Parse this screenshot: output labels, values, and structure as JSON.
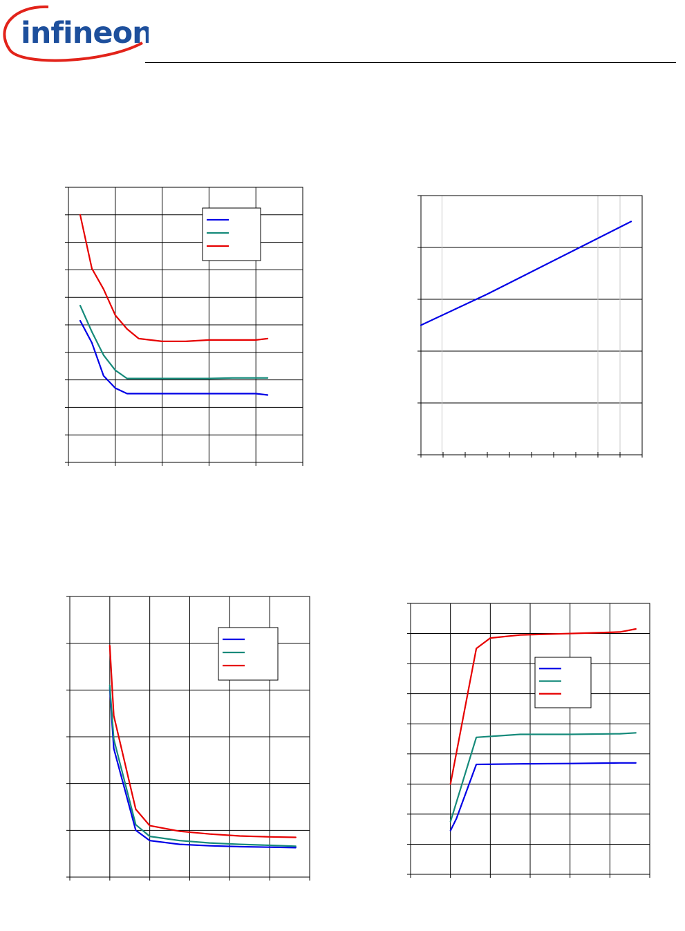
{
  "header": {
    "logo_text": "infineon",
    "colors": {
      "logo_text": "#1d4f9c",
      "logo_swoosh": "#e2231a"
    }
  },
  "chart_data": [
    {
      "type": "line",
      "position": "top-left",
      "xlim": [
        0,
        10
      ],
      "ylim": [
        0,
        10
      ],
      "x_gridlines": 5,
      "y_gridlines": 10,
      "grid": true,
      "legend": "top-right",
      "series": [
        {
          "color": "#0000e6",
          "x": [
            0.5,
            1.0,
            1.5,
            2.0,
            2.5,
            3.0,
            4.0,
            5.0,
            6.0,
            7.0,
            8.0,
            8.5
          ],
          "values": [
            5.15,
            4.35,
            3.15,
            2.7,
            2.5,
            2.5,
            2.5,
            2.5,
            2.5,
            2.5,
            2.5,
            2.45
          ]
        },
        {
          "color": "#158a7a",
          "x": [
            0.5,
            1.0,
            1.5,
            2.0,
            2.5,
            3.0,
            4.0,
            5.0,
            6.0,
            7.0,
            8.0,
            8.5
          ],
          "values": [
            5.7,
            4.75,
            3.9,
            3.35,
            3.05,
            3.05,
            3.05,
            3.05,
            3.05,
            3.07,
            3.07,
            3.07
          ]
        },
        {
          "color": "#e60000",
          "x": [
            0.5,
            1.0,
            1.5,
            2.0,
            2.5,
            3.0,
            4.0,
            5.0,
            6.0,
            7.0,
            8.0,
            8.5
          ],
          "values": [
            9.0,
            7.05,
            6.3,
            5.35,
            4.85,
            4.5,
            4.4,
            4.4,
            4.45,
            4.45,
            4.45,
            4.5
          ]
        }
      ]
    },
    {
      "type": "line",
      "position": "top-right",
      "xlim": [
        0,
        10
      ],
      "ylim": [
        0,
        5
      ],
      "y_gridlines": 5,
      "minor_x_ticks": 10,
      "grid": true,
      "series": [
        {
          "color": "#0000e6",
          "x": [
            0,
            3,
            9.5
          ],
          "values": [
            2.5,
            3.1,
            4.5
          ]
        }
      ]
    },
    {
      "type": "line",
      "position": "bottom-left",
      "xlim": [
        0,
        6
      ],
      "ylim": [
        0,
        6
      ],
      "x_gridlines": 6,
      "y_gridlines": 6,
      "grid": true,
      "legend": "top-right",
      "series": [
        {
          "color": "#0000e6",
          "x": [
            1.0,
            1.1,
            1.65,
            2.0,
            2.75,
            3.5,
            4.25,
            5.0,
            5.65
          ],
          "values": [
            4.05,
            2.75,
            1.0,
            0.78,
            0.7,
            0.67,
            0.65,
            0.64,
            0.63
          ]
        },
        {
          "color": "#158a7a",
          "x": [
            1.0,
            1.1,
            1.65,
            2.0,
            2.75,
            3.5,
            4.25,
            5.0,
            5.65
          ],
          "values": [
            4.1,
            2.95,
            1.12,
            0.87,
            0.78,
            0.73,
            0.7,
            0.68,
            0.66
          ]
        },
        {
          "color": "#e60000",
          "x": [
            1.0,
            1.1,
            1.65,
            2.0,
            2.75,
            3.5,
            4.25,
            5.0,
            5.65
          ],
          "values": [
            4.95,
            3.45,
            1.45,
            1.1,
            0.98,
            0.92,
            0.88,
            0.86,
            0.85
          ]
        }
      ]
    },
    {
      "type": "line",
      "position": "bottom-right",
      "xlim": [
        0,
        6
      ],
      "ylim": [
        0,
        9
      ],
      "x_gridlines": 6,
      "y_gridlines": 9,
      "grid": true,
      "legend": "center-right",
      "series": [
        {
          "color": "#0000e6",
          "x": [
            1.0,
            1.15,
            1.65,
            2.75,
            4.0,
            5.25,
            5.65
          ],
          "values": [
            1.45,
            1.85,
            3.65,
            3.67,
            3.68,
            3.7,
            3.7
          ]
        },
        {
          "color": "#158a7a",
          "x": [
            1.0,
            1.65,
            2.75,
            4.0,
            5.25,
            5.65
          ],
          "values": [
            1.75,
            4.55,
            4.65,
            4.65,
            4.67,
            4.7
          ]
        },
        {
          "color": "#e60000",
          "x": [
            1.0,
            1.65,
            2.0,
            2.75,
            4.0,
            5.25,
            5.65
          ],
          "values": [
            3.0,
            7.5,
            7.85,
            7.95,
            8.0,
            8.05,
            8.15
          ]
        }
      ]
    }
  ]
}
